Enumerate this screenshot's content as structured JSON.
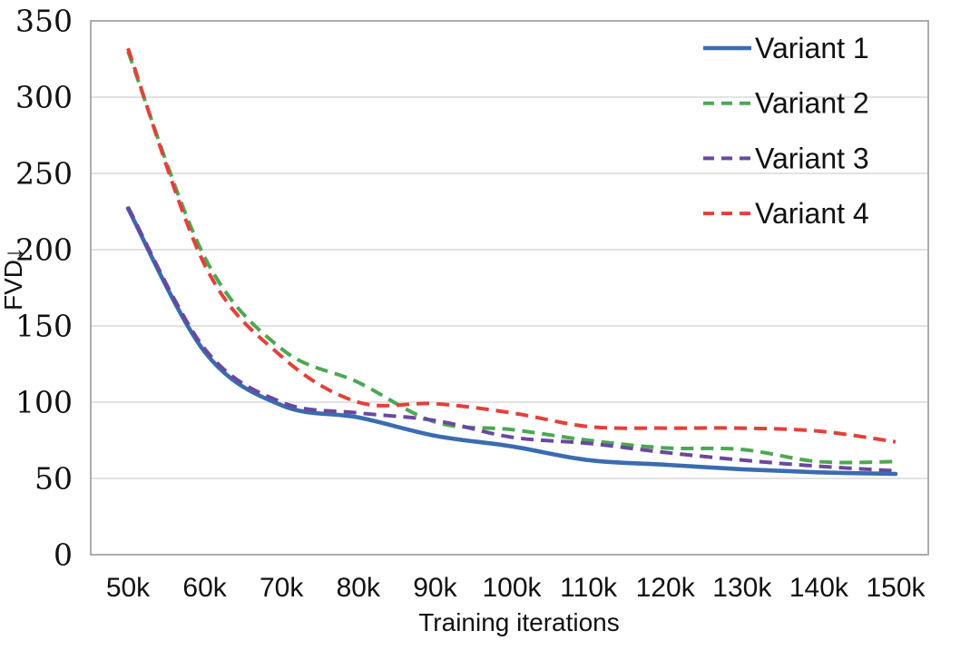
{
  "chart_data": {
    "type": "line",
    "title": "",
    "xlabel": "Training iterations",
    "ylabel": "FVD↓",
    "categories": [
      "50k",
      "60k",
      "70k",
      "80k",
      "90k",
      "100k",
      "110k",
      "120k",
      "130k",
      "140k",
      "150k"
    ],
    "yticks": [
      0,
      50,
      100,
      150,
      200,
      250,
      300,
      350
    ],
    "ylim": [
      0,
      350
    ],
    "grid": true,
    "legend_position": "top-right-inside",
    "series": [
      {
        "name": "Variant 1",
        "line_style": "solid",
        "color": "#3A6CB0",
        "values": [
          227,
          133,
          98,
          90,
          78,
          71,
          62,
          59,
          56,
          54,
          53
        ]
      },
      {
        "name": "Variant 2",
        "line_style": "dashed",
        "color": "#4EA753",
        "values": [
          330,
          195,
          135,
          113,
          87,
          82,
          75,
          70,
          69,
          61,
          61
        ]
      },
      {
        "name": "Variant 3",
        "line_style": "dashed",
        "color": "#6A489F",
        "values": [
          228,
          135,
          100,
          93,
          88,
          77,
          73,
          67,
          62,
          58,
          55
        ]
      },
      {
        "name": "Variant 4",
        "line_style": "dashed",
        "color": "#E2413A",
        "values": [
          332,
          190,
          130,
          100,
          99,
          93,
          84,
          83,
          83,
          81,
          74
        ]
      }
    ]
  },
  "colors": {
    "gridline": "#D9D9D9",
    "plot_border": "#A3A3A3",
    "text": "#111111",
    "background": "#FFFFFF"
  }
}
